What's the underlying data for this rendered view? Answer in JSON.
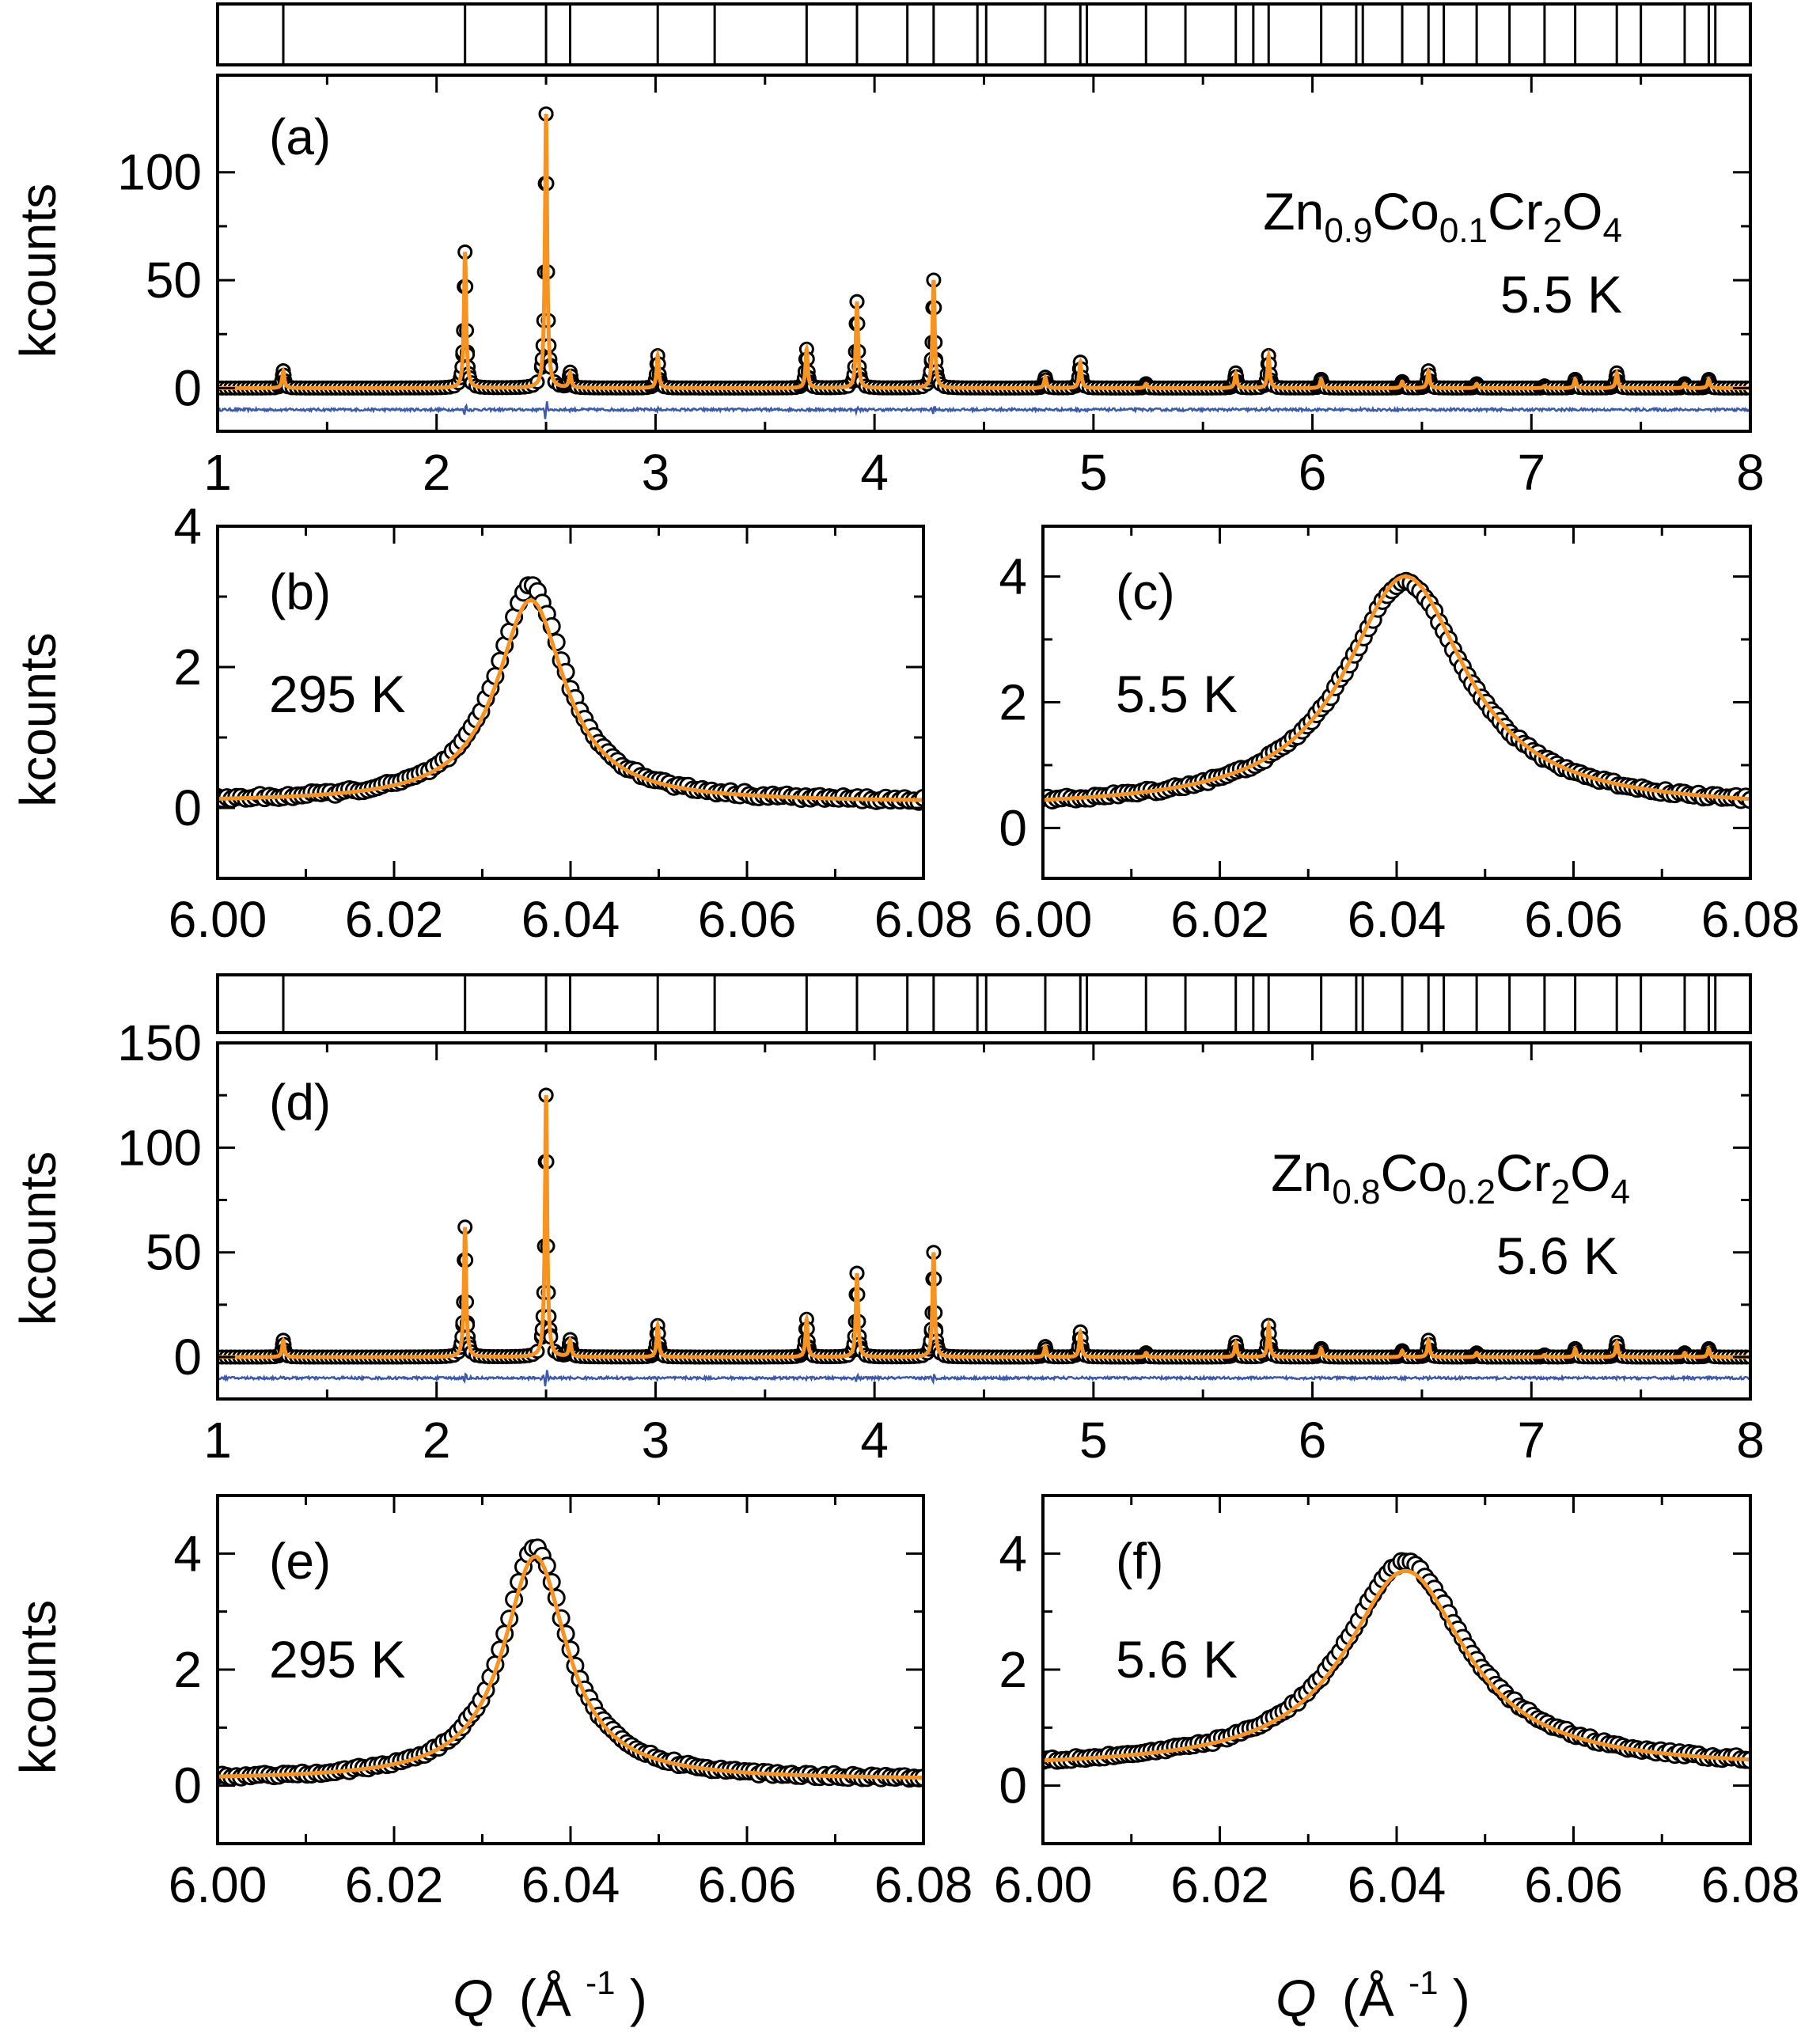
{
  "figure": {
    "xlabel_symbol": "Q",
    "xlabel_units": "(Å",
    "xlabel_exp": "-1",
    "xlabel_close": ")"
  },
  "colors": {
    "observed": "#000000",
    "calculated": "#f7931e",
    "difference": "#3a5ab0",
    "background": "#ffffff"
  },
  "chart_data": [
    {
      "id": "a",
      "type": "scatter",
      "panel_label": "(a)",
      "compound": {
        "parts": [
          [
            "Zn",
            ""
          ],
          [
            "",
            "0.9"
          ],
          [
            "Co",
            ""
          ],
          [
            "",
            "0.1"
          ],
          [
            "Cr",
            ""
          ],
          [
            "",
            "2"
          ],
          [
            "O",
            ""
          ],
          [
            "",
            "4"
          ]
        ]
      },
      "temperature": "5.5 K",
      "ylabel": "kcounts",
      "xlim": [
        1,
        8
      ],
      "ylim": [
        -20,
        145
      ],
      "xticks": [
        1,
        2,
        3,
        4,
        5,
        6,
        7,
        8
      ],
      "yticks": [
        0,
        50,
        100
      ],
      "peaks": [
        {
          "q": 1.3,
          "h": 8
        },
        {
          "q": 2.13,
          "h": 63
        },
        {
          "q": 2.5,
          "h": 127
        },
        {
          "q": 2.61,
          "h": 7
        },
        {
          "q": 3.01,
          "h": 15
        },
        {
          "q": 3.69,
          "h": 18
        },
        {
          "q": 3.92,
          "h": 40
        },
        {
          "q": 4.27,
          "h": 50
        },
        {
          "q": 4.78,
          "h": 5
        },
        {
          "q": 4.94,
          "h": 12
        },
        {
          "q": 5.24,
          "h": 2
        },
        {
          "q": 5.65,
          "h": 7
        },
        {
          "q": 5.8,
          "h": 15
        },
        {
          "q": 6.04,
          "h": 4
        },
        {
          "q": 6.41,
          "h": 3
        },
        {
          "q": 6.53,
          "h": 8
        },
        {
          "q": 6.75,
          "h": 2
        },
        {
          "q": 7.06,
          "h": 1
        },
        {
          "q": 7.2,
          "h": 4
        },
        {
          "q": 7.39,
          "h": 7
        },
        {
          "q": 7.7,
          "h": 2
        },
        {
          "q": 7.81,
          "h": 4
        }
      ],
      "background": 0,
      "difference_offset": -10,
      "reflections": [
        1.3,
        2.13,
        2.5,
        2.61,
        3.01,
        3.27,
        3.69,
        3.92,
        4.15,
        4.27,
        4.47,
        4.51,
        4.78,
        4.94,
        4.97,
        5.24,
        5.42,
        5.65,
        5.73,
        5.8,
        6.04,
        6.2,
        6.23,
        6.41,
        6.53,
        6.6,
        6.75,
        6.9,
        7.06,
        7.2,
        7.39,
        7.5,
        7.7,
        7.81,
        7.84
      ]
    },
    {
      "id": "b",
      "type": "scatter",
      "panel_label": "(b)",
      "temperature": "295 K",
      "ylabel": "kcounts",
      "xlim": [
        6,
        6.08
      ],
      "ylim": [
        -1,
        4
      ],
      "xticks": [
        6,
        6.02,
        6.04,
        6.06,
        6.08
      ],
      "yticks": [
        0,
        2,
        4
      ],
      "peak_center": 6.0355,
      "peak_height": 3.15,
      "calc_height": 2.95,
      "hwhm": 0.0048,
      "baseline": 0.08
    },
    {
      "id": "c",
      "type": "scatter",
      "panel_label": "(c)",
      "temperature": "5.5 K",
      "ylabel": "",
      "xlim": [
        6,
        6.08
      ],
      "ylim": [
        -0.8,
        4.8
      ],
      "xticks": [
        6,
        6.02,
        6.04,
        6.06,
        6.08
      ],
      "yticks": [
        0,
        2,
        4
      ],
      "peak_center": 6.041,
      "peak_height": 3.9,
      "calc_height": 4.0,
      "hwhm": 0.0085,
      "baseline": 0.3
    },
    {
      "id": "d",
      "type": "scatter",
      "panel_label": "(d)",
      "compound": {
        "parts": [
          [
            "Zn",
            ""
          ],
          [
            "",
            "0.8"
          ],
          [
            "Co",
            ""
          ],
          [
            "",
            "0.2"
          ],
          [
            "Cr",
            ""
          ],
          [
            "",
            "2"
          ],
          [
            "O",
            ""
          ],
          [
            "",
            "4"
          ]
        ]
      },
      "temperature": "5.6 K",
      "ylabel": "kcounts",
      "xlim": [
        1,
        8
      ],
      "ylim": [
        -20,
        150
      ],
      "xticks": [
        1,
        2,
        3,
        4,
        5,
        6,
        7,
        8
      ],
      "yticks": [
        0,
        50,
        100,
        150
      ],
      "peaks": [
        {
          "q": 1.3,
          "h": 8
        },
        {
          "q": 2.13,
          "h": 62
        },
        {
          "q": 2.5,
          "h": 125
        },
        {
          "q": 2.61,
          "h": 8
        },
        {
          "q": 3.01,
          "h": 15
        },
        {
          "q": 3.69,
          "h": 18
        },
        {
          "q": 3.92,
          "h": 40
        },
        {
          "q": 4.27,
          "h": 50
        },
        {
          "q": 4.78,
          "h": 5
        },
        {
          "q": 4.94,
          "h": 12
        },
        {
          "q": 5.24,
          "h": 2
        },
        {
          "q": 5.65,
          "h": 7
        },
        {
          "q": 5.8,
          "h": 15
        },
        {
          "q": 6.04,
          "h": 4
        },
        {
          "q": 6.41,
          "h": 3
        },
        {
          "q": 6.53,
          "h": 8
        },
        {
          "q": 6.75,
          "h": 2
        },
        {
          "q": 7.06,
          "h": 1
        },
        {
          "q": 7.2,
          "h": 4
        },
        {
          "q": 7.39,
          "h": 7
        },
        {
          "q": 7.7,
          "h": 2
        },
        {
          "q": 7.81,
          "h": 4
        }
      ],
      "background": 0,
      "difference_offset": -10,
      "reflections": [
        1.3,
        2.13,
        2.5,
        2.61,
        3.01,
        3.27,
        3.69,
        3.92,
        4.15,
        4.27,
        4.47,
        4.51,
        4.78,
        4.94,
        4.97,
        5.24,
        5.42,
        5.65,
        5.73,
        5.8,
        6.04,
        6.2,
        6.23,
        6.41,
        6.53,
        6.6,
        6.75,
        6.9,
        7.06,
        7.2,
        7.39,
        7.5,
        7.7,
        7.81,
        7.84
      ]
    },
    {
      "id": "e",
      "type": "scatter",
      "panel_label": "(e)",
      "temperature": "295 K",
      "ylabel": "kcounts",
      "xlim": [
        6,
        6.08
      ],
      "ylim": [
        -1,
        5
      ],
      "xticks": [
        6,
        6.02,
        6.04,
        6.06,
        6.08
      ],
      "yticks": [
        0,
        2,
        4
      ],
      "peak_center": 6.036,
      "peak_height": 4.1,
      "calc_height": 3.95,
      "hwhm": 0.0045,
      "baseline": 0.1
    },
    {
      "id": "f",
      "type": "scatter",
      "panel_label": "(f)",
      "temperature": "5.6 K",
      "ylabel": "",
      "xlim": [
        6,
        6.08
      ],
      "ylim": [
        -1,
        5
      ],
      "xticks": [
        6,
        6.02,
        6.04,
        6.06,
        6.08
      ],
      "yticks": [
        0,
        2,
        4
      ],
      "peak_center": 6.041,
      "peak_height": 3.85,
      "calc_height": 3.7,
      "hwhm": 0.0085,
      "baseline": 0.3
    }
  ]
}
